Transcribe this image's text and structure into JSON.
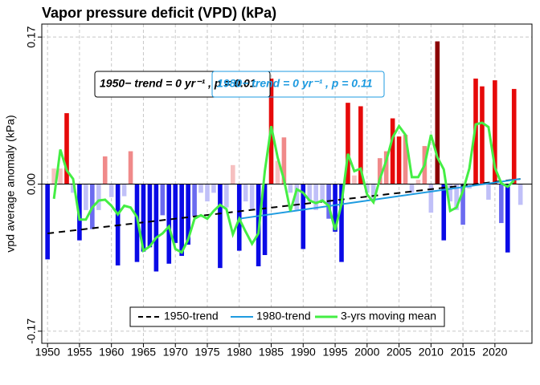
{
  "chart_data": {
    "type": "bar",
    "title": "Vapor pressure deficit (VPD)  (kPa)",
    "y_label": "vpd average anomaly (kPa)",
    "x": [
      1950,
      1951,
      1952,
      1953,
      1954,
      1955,
      1956,
      1957,
      1958,
      1959,
      1960,
      1961,
      1962,
      1963,
      1964,
      1965,
      1966,
      1967,
      1968,
      1969,
      1970,
      1971,
      1972,
      1973,
      1974,
      1975,
      1976,
      1977,
      1978,
      1979,
      1980,
      1981,
      1982,
      1983,
      1984,
      1985,
      1986,
      1987,
      1988,
      1989,
      1990,
      1991,
      1992,
      1993,
      1994,
      1995,
      1996,
      1997,
      1998,
      1999,
      2000,
      2001,
      2002,
      2003,
      2004,
      2005,
      2006,
      2007,
      2008,
      2009,
      2010,
      2011,
      2012,
      2013,
      2014,
      2015,
      2016,
      2017,
      2018,
      2019,
      2020,
      2021,
      2022,
      2023,
      2024
    ],
    "xlim": [
      1949.1,
      2025.8
    ],
    "xticks": [
      1950,
      1955,
      1960,
      1965,
      1970,
      1975,
      1980,
      1985,
      1990,
      1995,
      2000,
      2005,
      2010,
      2015,
      2020
    ],
    "ylim": [
      -0.184,
      0.185
    ],
    "yticks": [
      0.17,
      {
        "value": 0,
        "label": "0.00"
      },
      -0.17
    ],
    "grid": true,
    "legend": "bottom",
    "series": [
      {
        "type": "bar",
        "values": [
          -0.087,
          0.018,
          0.018,
          0.082,
          -0.01,
          -0.065,
          -0.03,
          -0.052,
          -0.03,
          0.032,
          -0.015,
          -0.094,
          -0.014,
          0.038,
          -0.09,
          -0.078,
          -0.073,
          -0.101,
          -0.036,
          -0.092,
          -0.068,
          -0.083,
          -0.07,
          -0.037,
          -0.01,
          -0.02,
          -0.01,
          -0.097,
          -0.027,
          0.022,
          -0.077,
          -0.02,
          -0.03,
          -0.095,
          -0.082,
          0.122,
          0.027,
          0.054,
          -0.01,
          -0.03,
          -0.075,
          -0.02,
          -0.03,
          -0.02,
          -0.04,
          -0.055,
          -0.09,
          0.094,
          0.01,
          0.09,
          -0.01,
          -0.02,
          0.03,
          0.038,
          0.076,
          0.055,
          0.057,
          -0.01,
          0.005,
          0.044,
          -0.033,
          0.165,
          -0.065,
          -0.02,
          -0.03,
          -0.047,
          -0.005,
          0.122,
          0.113,
          -0.018,
          0.12,
          -0.045,
          -0.079,
          0.11,
          -0.024
        ],
        "colors": [
          "#0a0ae6",
          "#f6c0c0",
          "#f6c0c0",
          "#e60a0a",
          "#c0c0f8",
          "#0a0ae6",
          "#c0c0f8",
          "#6b6bf0",
          "#c0c0f8",
          "#f08a8a",
          "#c0c0f8",
          "#0a0ae6",
          "#c0c0f8",
          "#f08a8a",
          "#0a0ae6",
          "#0a0ae6",
          "#0a0ae6",
          "#0a0ae6",
          "#6b6bf0",
          "#0a0ae6",
          "#0a0ae6",
          "#0a0ae6",
          "#0a0ae6",
          "#6b6bf0",
          "#c0c0f8",
          "#c0c0f8",
          "#c0c0f8",
          "#0a0ae6",
          "#c0c0f8",
          "#f6c0c0",
          "#0a0ae6",
          "#c0c0f8",
          "#c0c0f8",
          "#0a0ae6",
          "#0a0ae6",
          "#e60a0a",
          "#f6c0c0",
          "#f08a8a",
          "#c0c0f8",
          "#c0c0f8",
          "#0a0ae6",
          "#c0c0f8",
          "#c0c0f8",
          "#c0c0f8",
          "#6b6bf0",
          "#0a0ae6",
          "#0a0ae6",
          "#e60a0a",
          "#f6c0c0",
          "#e60a0a",
          "#c0c0f8",
          "#c0c0f8",
          "#f08a8a",
          "#f08a8a",
          "#e60a0a",
          "#e60a0a",
          "#f08a8a",
          "#c0c0f8",
          "#f6c0c0",
          "#f08a8a",
          "#c0c0f8",
          "#8b0000",
          "#0a0ae6",
          "#c0c0f8",
          "#c0c0f8",
          "#6b6bf0",
          "#c0c0f8",
          "#e60a0a",
          "#e60a0a",
          "#c0c0f8",
          "#e60a0a",
          "#6b6bf0",
          "#0a0ae6",
          "#e60a0a",
          "#c0c0f8"
        ]
      },
      {
        "name": "1950-trend",
        "type": "line",
        "dash": true,
        "color": "#000000",
        "x": [
          1950,
          2024
        ],
        "values": [
          -0.057,
          0.006
        ]
      },
      {
        "name": "1980-trend",
        "type": "line",
        "color": "#1e9be0",
        "x": [
          1980,
          2024
        ],
        "values": [
          -0.04,
          0.006
        ]
      },
      {
        "name": "3-yrs moving mean",
        "type": "line",
        "color": "#44ee44",
        "values": [
          null,
          -0.017,
          0.04,
          0.016,
          0.006,
          -0.041,
          -0.041,
          -0.027,
          -0.019,
          -0.018,
          -0.025,
          -0.035,
          -0.025,
          -0.027,
          -0.038,
          -0.077,
          -0.072,
          -0.062,
          -0.057,
          -0.049,
          -0.075,
          -0.079,
          -0.064,
          -0.04,
          -0.036,
          -0.04,
          -0.031,
          -0.024,
          -0.029,
          -0.058,
          -0.04,
          -0.055,
          -0.069,
          -0.057,
          0.015,
          0.067,
          0.031,
          0.005,
          -0.031,
          -0.006,
          -0.01,
          -0.019,
          -0.022,
          -0.019,
          -0.025,
          -0.053,
          -0.023,
          0.035,
          0.015,
          0.018,
          -0.012,
          -0.021,
          0.006,
          0.027,
          0.054,
          0.067,
          0.057,
          0.008,
          0.008,
          0.022,
          0.057,
          0.031,
          0.017,
          -0.031,
          -0.027,
          -0.008,
          0.018,
          0.069,
          0.071,
          0.066,
          0.019,
          0.001,
          -0.003,
          0.004,
          null
        ]
      }
    ],
    "annotations": [
      {
        "text": "1950− trend = 0 yr⁻¹ , p = 0.01",
        "color": "#000000"
      },
      {
        "text": "1980− trend = 0 yr⁻¹ , p = 0.11",
        "color": "#1e9be0"
      }
    ]
  }
}
